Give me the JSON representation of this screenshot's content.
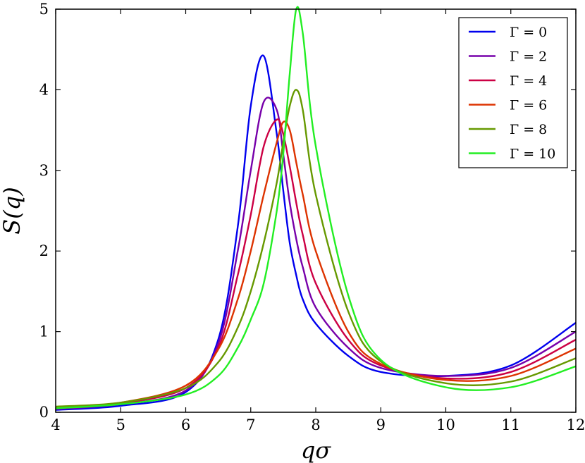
{
  "chart_data": {
    "type": "line",
    "xlabel": "qσ",
    "ylabel": "S(q)",
    "xlim": [
      4,
      12
    ],
    "ylim": [
      0,
      5
    ],
    "xticks": [
      "4",
      "5",
      "6",
      "7",
      "8",
      "9",
      "10",
      "11",
      "12"
    ],
    "yticks": [
      "0",
      "1",
      "2",
      "3",
      "4",
      "5"
    ],
    "grid": false,
    "legend_position": "top-right",
    "x": [
      4.0,
      5.0,
      6.0,
      6.5,
      6.8,
      7.0,
      7.2,
      7.4,
      7.5,
      7.6,
      7.7,
      7.8,
      8.0,
      8.5,
      9.0,
      10.0,
      11.0,
      12.0
    ],
    "series": [
      {
        "name": "Γ = 0",
        "color": "#0000ee",
        "values": [
          0.03,
          0.08,
          0.25,
          0.9,
          2.3,
          3.8,
          4.42,
          3.45,
          2.75,
          2.1,
          1.7,
          1.4,
          1.1,
          0.7,
          0.5,
          0.45,
          0.58,
          1.11
        ]
      },
      {
        "name": "Γ = 2",
        "color": "#7700aa",
        "values": [
          0.04,
          0.1,
          0.27,
          0.85,
          2.0,
          3.0,
          3.85,
          3.75,
          3.2,
          2.6,
          2.15,
          1.8,
          1.3,
          0.8,
          0.55,
          0.45,
          0.55,
          1.0
        ]
      },
      {
        "name": "Γ = 4",
        "color": "#cc0044",
        "values": [
          0.05,
          0.11,
          0.3,
          0.8,
          1.7,
          2.45,
          3.3,
          3.63,
          3.45,
          3.05,
          2.6,
          2.2,
          1.6,
          0.9,
          0.58,
          0.42,
          0.5,
          0.9
        ]
      },
      {
        "name": "Γ = 6",
        "color": "#dd3300",
        "values": [
          0.06,
          0.12,
          0.33,
          0.78,
          1.4,
          2.0,
          2.7,
          3.35,
          3.6,
          3.5,
          3.1,
          2.7,
          2.0,
          1.0,
          0.6,
          0.4,
          0.45,
          0.79
        ]
      },
      {
        "name": "Γ = 8",
        "color": "#669900",
        "values": [
          0.07,
          0.12,
          0.3,
          0.62,
          1.05,
          1.5,
          2.1,
          2.85,
          3.35,
          3.8,
          4.0,
          3.75,
          2.7,
          1.25,
          0.63,
          0.36,
          0.38,
          0.67
        ]
      },
      {
        "name": "Γ = 10",
        "color": "#22ee22",
        "values": [
          0.05,
          0.1,
          0.22,
          0.45,
          0.8,
          1.15,
          1.6,
          2.5,
          3.2,
          4.2,
          5.0,
          4.7,
          3.3,
          1.45,
          0.65,
          0.31,
          0.31,
          0.57
        ]
      }
    ]
  }
}
